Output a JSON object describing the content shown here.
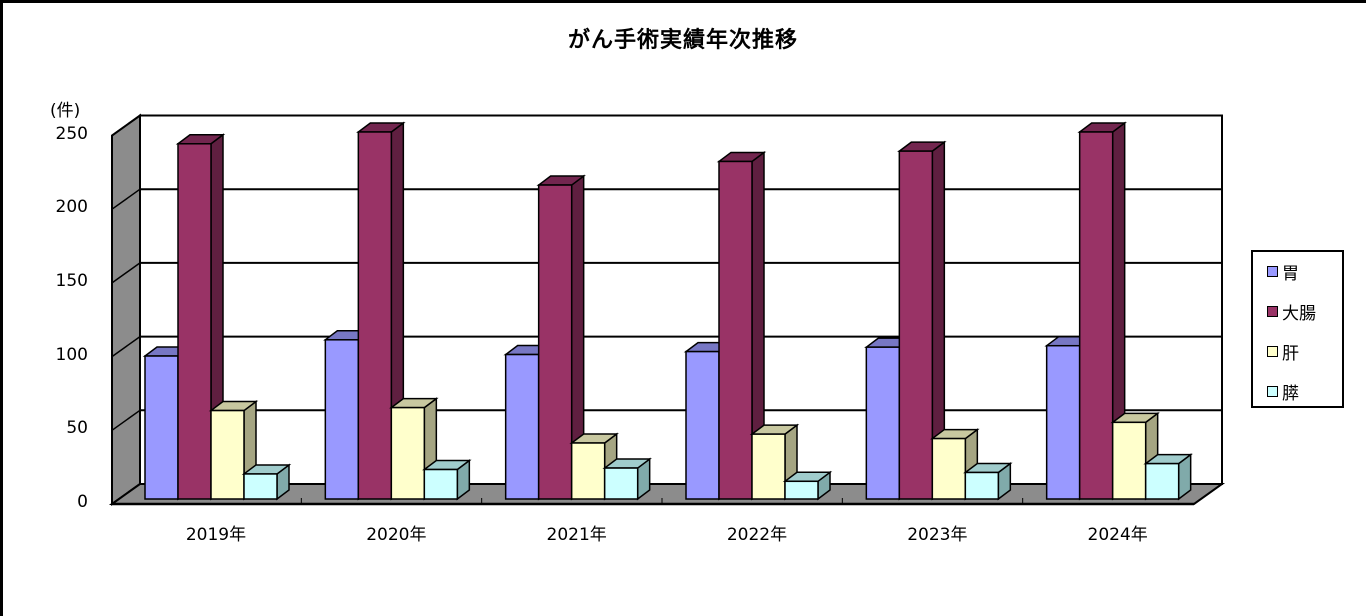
{
  "chart_data": {
    "type": "bar",
    "subtype": "3d-clustered-column",
    "title": "がん手術実績年次推移",
    "xlabel": "",
    "ylabel": "(件)",
    "ylim": [
      0,
      250
    ],
    "yticks": [
      0,
      50,
      100,
      150,
      200,
      250
    ],
    "grid": true,
    "legend_position": "right",
    "categories": [
      "2019年",
      "2020年",
      "2021年",
      "2022年",
      "2023年",
      "2024年"
    ],
    "series": [
      {
        "name": "胃",
        "color": "#9999FF",
        "values": [
          97,
          108,
          98,
          100,
          103,
          104
        ]
      },
      {
        "name": "大腸",
        "color": "#993366",
        "values": [
          241,
          249,
          213,
          229,
          236,
          249
        ]
      },
      {
        "name": "肝",
        "color": "#FFFFCC",
        "values": [
          60,
          62,
          38,
          44,
          41,
          52
        ]
      },
      {
        "name": "膵",
        "color": "#CCFFFF",
        "values": [
          17,
          20,
          21,
          12,
          18,
          24
        ]
      }
    ]
  },
  "colors": {
    "wall": "#8C8C8C",
    "series_side": [
      "#6E6EB8",
      "#5F1F40",
      "#A5A582",
      "#80AAAA"
    ],
    "series_top": [
      "#7777C4",
      "#73264F",
      "#C8C8A0",
      "#A0CCCC"
    ]
  }
}
